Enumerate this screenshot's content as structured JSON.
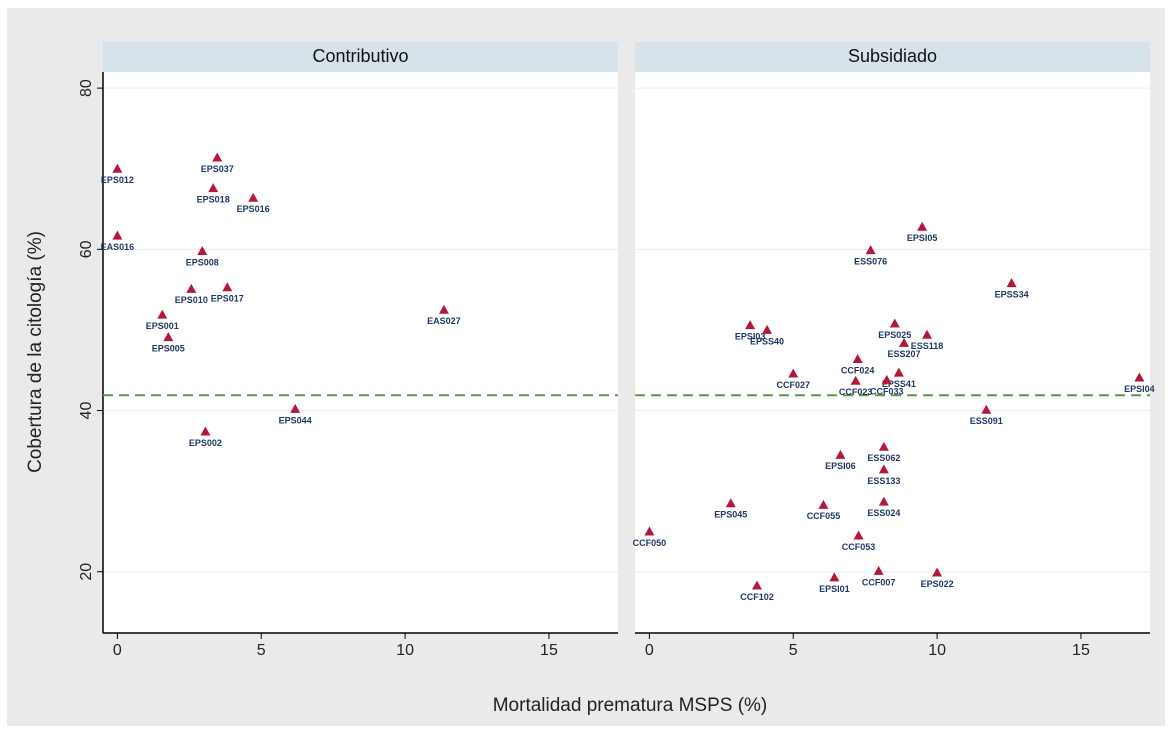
{
  "chart_data": {
    "type": "scatter",
    "x_label": "Mortalidad prematura MSPS (%)",
    "y_label": "Cobertura de la citología (%)",
    "xlim": [
      -0.5,
      17.4
    ],
    "ylim": [
      12.4,
      82
    ],
    "xticks": [
      0,
      5,
      10,
      15
    ],
    "yticks": [
      20,
      40,
      60,
      80
    ],
    "grid": true,
    "marker_color": "#b5173b",
    "reference_y": 41.9,
    "reference_color": "#5b9b47",
    "panels": [
      {
        "title": "Contributivo",
        "labels": [
          "EPS012",
          "EPS037",
          "EPS018",
          "EPS016",
          "EAS016",
          "EPS008",
          "EPS010",
          "EPS017",
          "EPS001",
          "EPS005",
          "EAS027",
          "EPS002",
          "EPS044"
        ],
        "x": [
          0,
          3.47,
          3.33,
          4.72,
          0,
          2.95,
          2.57,
          3.82,
          1.56,
          1.77,
          11.35,
          3.06,
          6.18
        ],
        "y": [
          70.0,
          71.4,
          67.6,
          66.4,
          61.7,
          59.8,
          55.1,
          55.3,
          51.9,
          49.1,
          52.5,
          37.4,
          40.2
        ]
      },
      {
        "title": "Subsidiado",
        "labels": [
          "EPSI05",
          "ESS076",
          "EPSS34",
          "EPSI03",
          "EPSS40",
          "EPS025",
          "ESS118",
          "ESS207",
          "EPSI04",
          "CCF024",
          "CCF027",
          "CCF023",
          "EPSS41",
          "CCF033",
          "ESS091",
          "ESS062",
          "EPSI06",
          "ESS133",
          "EPS045",
          "CCF055",
          "ESS024",
          "CCF050",
          "CCF053",
          "CCF102",
          "EPSI01",
          "CCF007",
          "EPS022"
        ],
        "x": [
          9.48,
          7.69,
          12.59,
          3.5,
          4.09,
          8.53,
          9.65,
          8.85,
          17.03,
          7.24,
          5.0,
          7.17,
          8.67,
          8.25,
          11.71,
          8.15,
          6.64,
          8.15,
          2.83,
          6.05,
          8.15,
          0,
          7.27,
          3.74,
          6.43,
          7.97,
          10.0
        ],
        "y": [
          62.8,
          59.9,
          55.8,
          50.6,
          50.0,
          50.8,
          49.4,
          48.4,
          44.1,
          46.4,
          44.6,
          43.7,
          44.7,
          43.8,
          40.1,
          35.5,
          34.5,
          32.7,
          28.5,
          28.3,
          28.7,
          25.0,
          24.5,
          18.3,
          19.3,
          20.1,
          19.9
        ]
      }
    ]
  }
}
